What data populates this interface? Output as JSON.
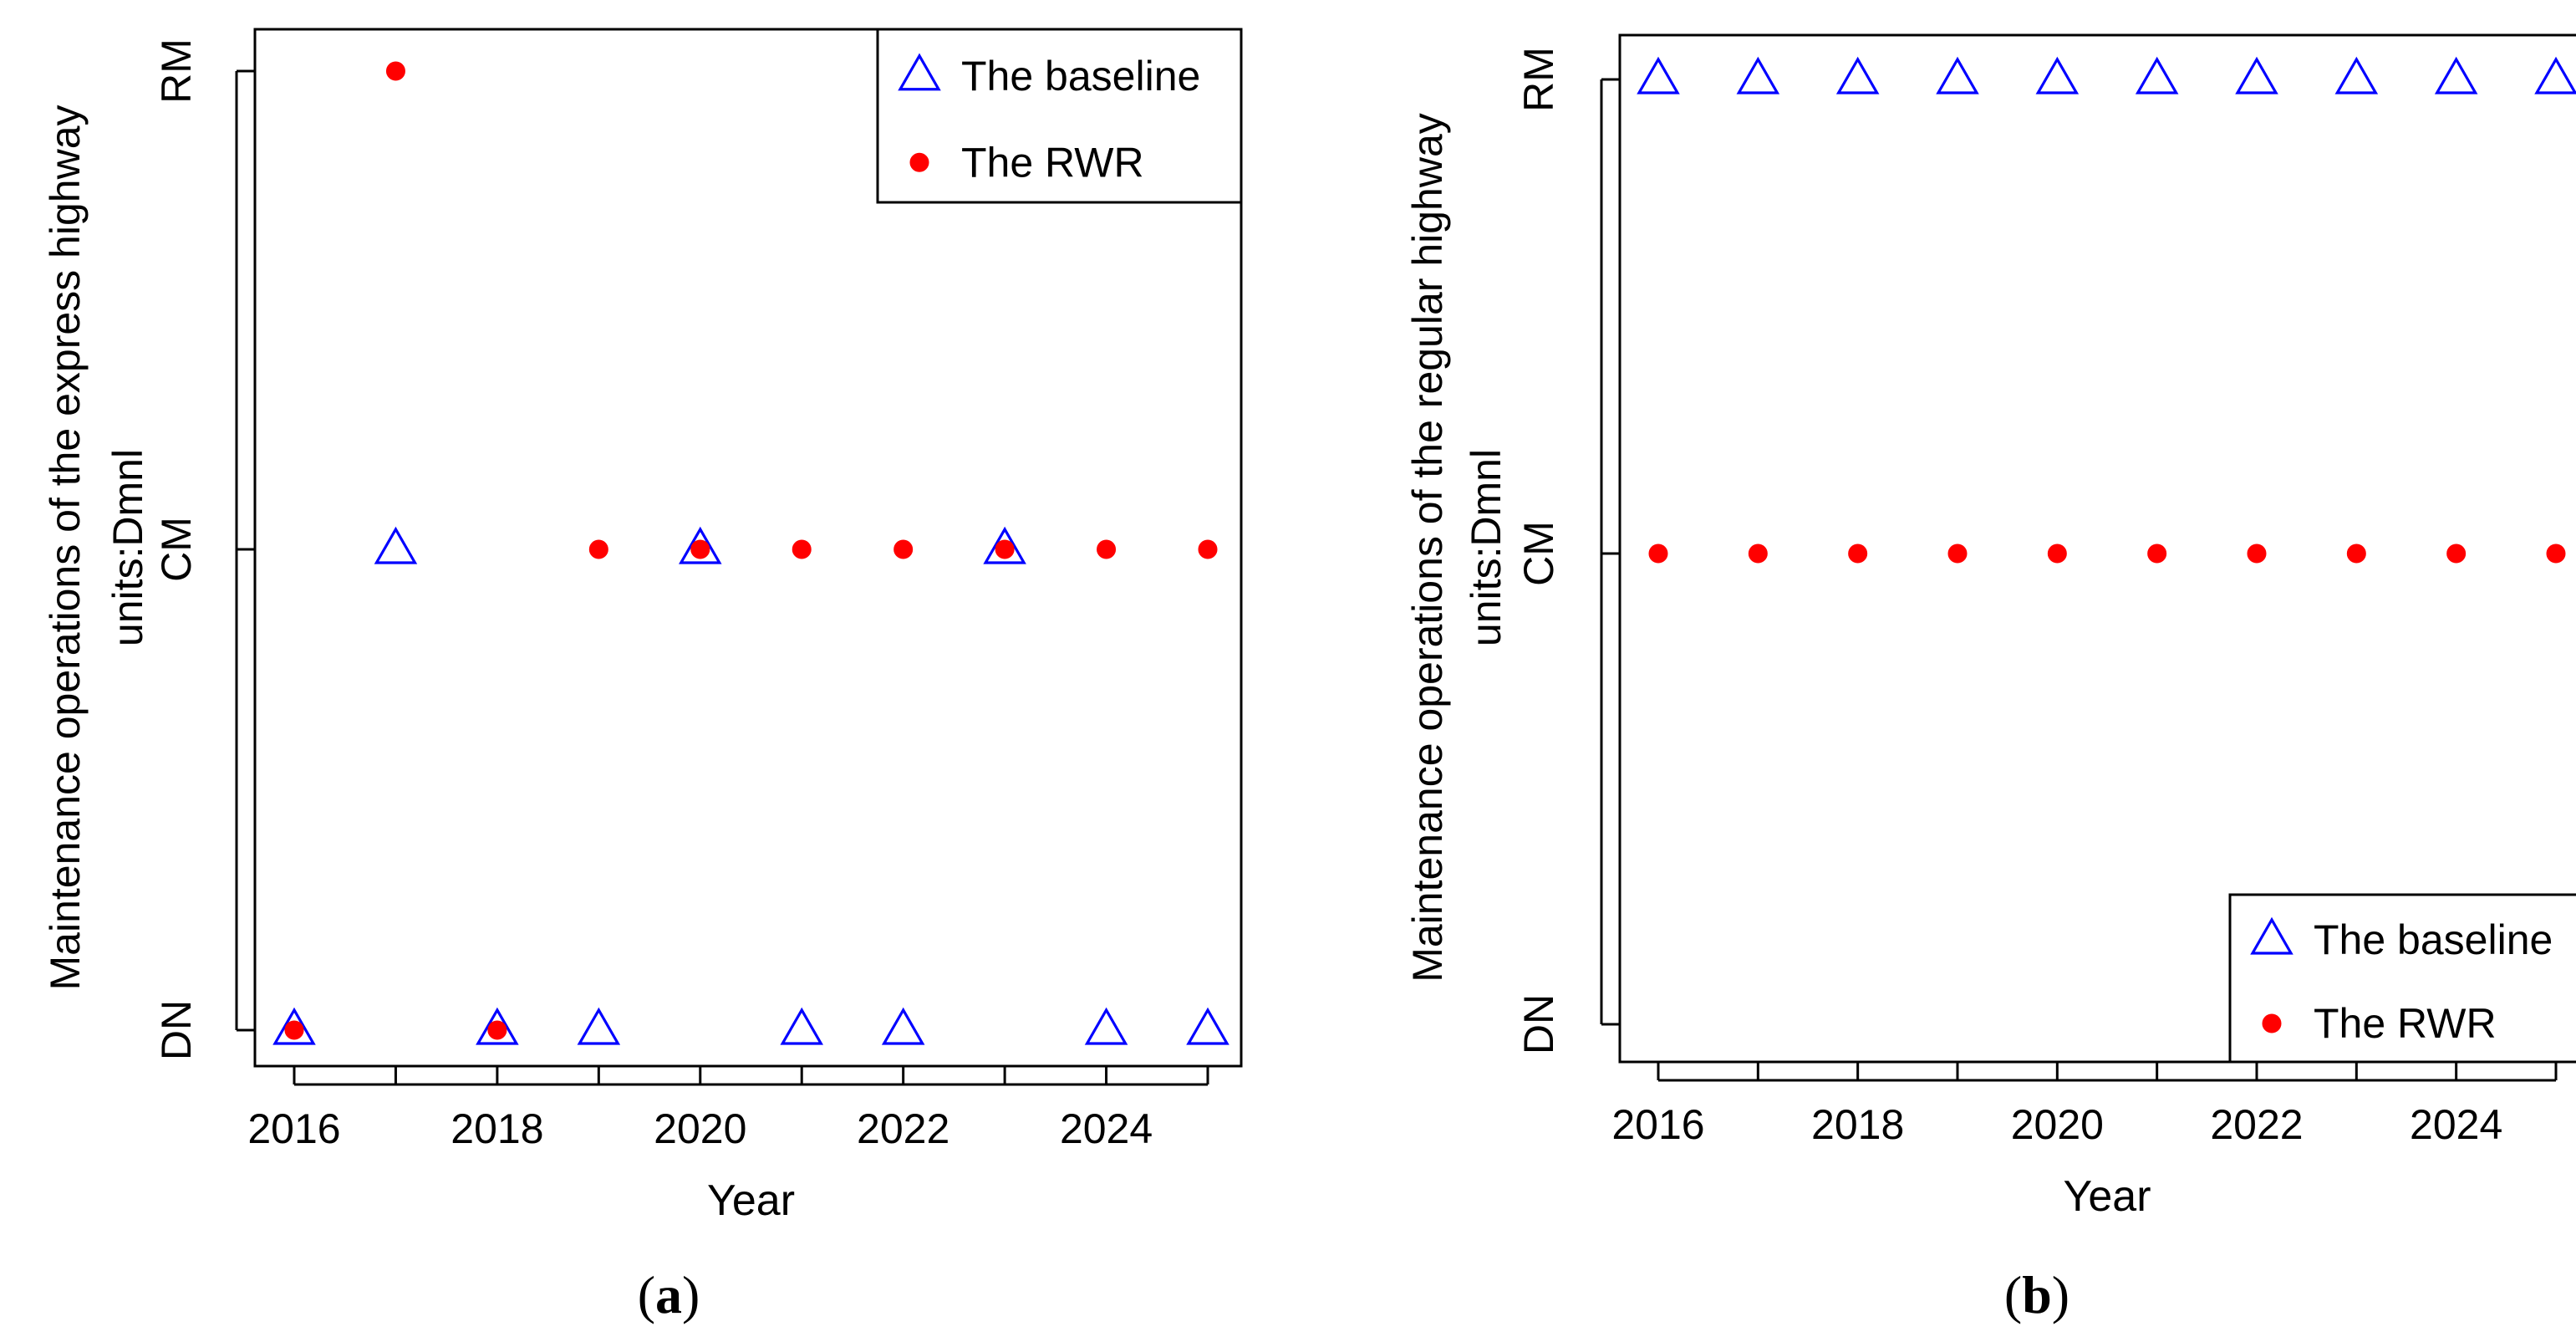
{
  "chart_data": [
    {
      "type": "scatter",
      "panel_label": "(a)",
      "caption_open": "(",
      "caption_letter": "a",
      "caption_close": ")",
      "xlabel": "Year",
      "ylabel_line1": "Maintenance operations of the express highway",
      "ylabel_line2": "units:Dmnl",
      "x_ticks": [
        2016,
        2018,
        2020,
        2022,
        2024
      ],
      "xlim": [
        2016,
        2025
      ],
      "y_categories": [
        "DN",
        "CM",
        "RM"
      ],
      "legend_position": "top-right",
      "series": [
        {
          "name": "The baseline",
          "marker": "open-triangle",
          "color": "#0000ff",
          "x": [
            2016,
            2017,
            2018,
            2019,
            2020,
            2021,
            2022,
            2023,
            2024,
            2025
          ],
          "y": [
            "DN",
            "CM",
            "DN",
            "DN",
            "CM",
            "DN",
            "DN",
            "CM",
            "DN",
            "DN"
          ]
        },
        {
          "name": "The RWR",
          "marker": "filled-circle",
          "color": "#ff0000",
          "x": [
            2016,
            2017,
            2018,
            2019,
            2020,
            2021,
            2022,
            2023,
            2024,
            2025
          ],
          "y": [
            "DN",
            "RM",
            "DN",
            "CM",
            "CM",
            "CM",
            "CM",
            "CM",
            "CM",
            "CM"
          ]
        }
      ]
    },
    {
      "type": "scatter",
      "panel_label": "(b)",
      "caption_open": "(",
      "caption_letter": "b",
      "caption_close": ")",
      "xlabel": "Year",
      "ylabel_line1": "Maintenance operations of the regular highway",
      "ylabel_line2": "units:Dmnl",
      "x_ticks": [
        2016,
        2018,
        2020,
        2022,
        2024
      ],
      "xlim": [
        2016,
        2025
      ],
      "y_categories": [
        "DN",
        "CM",
        "RM"
      ],
      "legend_position": "bottom-right",
      "series": [
        {
          "name": "The baseline",
          "marker": "open-triangle",
          "color": "#0000ff",
          "x": [
            2016,
            2017,
            2018,
            2019,
            2020,
            2021,
            2022,
            2023,
            2024,
            2025
          ],
          "y": [
            "RM",
            "RM",
            "RM",
            "RM",
            "RM",
            "RM",
            "RM",
            "RM",
            "RM",
            "RM"
          ]
        },
        {
          "name": "The RWR",
          "marker": "filled-circle",
          "color": "#ff0000",
          "x": [
            2016,
            2017,
            2018,
            2019,
            2020,
            2021,
            2022,
            2023,
            2024,
            2025
          ],
          "y": [
            "CM",
            "CM",
            "CM",
            "CM",
            "CM",
            "CM",
            "CM",
            "CM",
            "CM",
            "CM"
          ]
        }
      ]
    }
  ]
}
